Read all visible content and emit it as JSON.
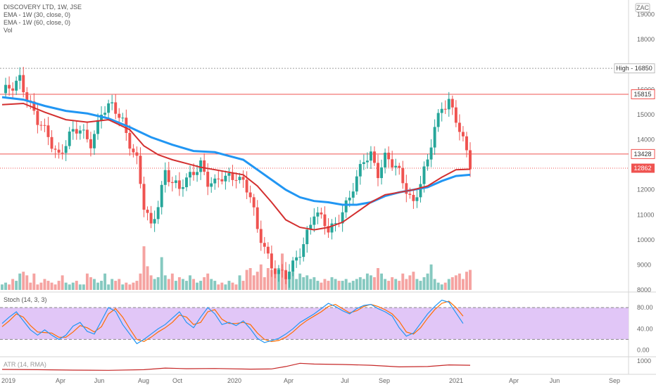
{
  "legend": {
    "title": "DISCOVERY LTD, 1W, JSE",
    "ema30": "EMA - 1W (30, close, 0)",
    "ema60": "EMA - 1W (60, close, 0)",
    "vol": "Vol"
  },
  "currency_badge": "ZAC",
  "price_labels": {
    "high": "High - 16850",
    "level_top": "15815",
    "level_mid": "13428",
    "last": "12862"
  },
  "stoch_label": "Stoch (14, 3, 3)",
  "atr_label": "ATR (14, RMA)",
  "colors": {
    "up": "#26a69a",
    "down": "#ef5350",
    "vol_up": "#86c9c0",
    "vol_down": "#f5a3a1",
    "ema30": "#d32f2f",
    "ema60": "#2196f3",
    "stoch_k": "#2196f3",
    "stoch_d": "#ff6d00",
    "stoch_band": "#e1c6f7",
    "hline": "#ef9a9a",
    "high_line": "#9e9e9e",
    "atr": "#c62828"
  },
  "chart_data": {
    "type": "candlestick",
    "x_ticks": [
      "2019",
      "Apr",
      "Jun",
      "Aug",
      "Oct",
      "2020",
      "Apr",
      "Jul",
      "Sep",
      "2021",
      "Apr",
      "Jun",
      "Sep"
    ],
    "price_axis": {
      "ticks": [
        19000,
        18000,
        16000,
        15000,
        14000,
        12000,
        11000,
        10000,
        9000,
        8000
      ],
      "range": [
        8000,
        19300
      ]
    },
    "levels": {
      "high": 16850,
      "top": 15815,
      "mid": 13428,
      "last": 12862
    },
    "close_path": [
      [
        0,
        15700
      ],
      [
        3,
        16100
      ],
      [
        5,
        16600
      ],
      [
        7,
        15800
      ],
      [
        10,
        14600
      ],
      [
        13,
        14100
      ],
      [
        16,
        13500
      ],
      [
        19,
        14100
      ],
      [
        22,
        14300
      ],
      [
        25,
        14000
      ],
      [
        28,
        15100
      ],
      [
        31,
        15200
      ],
      [
        34,
        14800
      ],
      [
        36,
        14000
      ],
      [
        38,
        13200
      ],
      [
        40,
        11200
      ],
      [
        42,
        10400
      ],
      [
        44,
        11500
      ],
      [
        46,
        12900
      ],
      [
        48,
        12300
      ],
      [
        50,
        11900
      ],
      [
        52,
        12300
      ],
      [
        54,
        12800
      ],
      [
        56,
        13200
      ],
      [
        58,
        12300
      ],
      [
        60,
        12100
      ],
      [
        62,
        12400
      ],
      [
        64,
        12600
      ],
      [
        66,
        12700
      ],
      [
        68,
        12300
      ],
      [
        70,
        11600
      ],
      [
        72,
        10300
      ],
      [
        74,
        9800
      ],
      [
        76,
        9100
      ],
      [
        78,
        8700
      ],
      [
        80,
        8400
      ],
      [
        82,
        8900
      ],
      [
        84,
        9600
      ],
      [
        86,
        10400
      ],
      [
        88,
        11100
      ],
      [
        90,
        10700
      ],
      [
        92,
        10300
      ],
      [
        94,
        10700
      ],
      [
        96,
        11300
      ],
      [
        98,
        11700
      ],
      [
        100,
        12300
      ],
      [
        102,
        13100
      ],
      [
        104,
        13500
      ],
      [
        106,
        12800
      ],
      [
        108,
        13300
      ],
      [
        110,
        12900
      ],
      [
        112,
        12600
      ],
      [
        114,
        12100
      ],
      [
        116,
        11600
      ],
      [
        118,
        12300
      ],
      [
        120,
        13000
      ],
      [
        122,
        14400
      ],
      [
        124,
        15400
      ],
      [
        126,
        15700
      ],
      [
        128,
        14800
      ],
      [
        130,
        13800
      ],
      [
        132,
        12900
      ]
    ],
    "ema30": [
      [
        0,
        15400
      ],
      [
        6,
        15450
      ],
      [
        12,
        15100
      ],
      [
        18,
        14800
      ],
      [
        24,
        14700
      ],
      [
        30,
        14800
      ],
      [
        36,
        14400
      ],
      [
        40,
        13750
      ],
      [
        44,
        13400
      ],
      [
        48,
        13200
      ],
      [
        52,
        13050
      ],
      [
        56,
        12900
      ],
      [
        60,
        12800
      ],
      [
        64,
        12700
      ],
      [
        68,
        12600
      ],
      [
        72,
        12150
      ],
      [
        76,
        11500
      ],
      [
        80,
        10800
      ],
      [
        84,
        10500
      ],
      [
        88,
        10400
      ],
      [
        92,
        10500
      ],
      [
        96,
        10700
      ],
      [
        100,
        11100
      ],
      [
        104,
        11500
      ],
      [
        108,
        11800
      ],
      [
        112,
        11900
      ],
      [
        116,
        12000
      ],
      [
        120,
        12150
      ],
      [
        124,
        12500
      ],
      [
        128,
        12800
      ],
      [
        132,
        12820
      ]
    ],
    "ema60": [
      [
        0,
        15700
      ],
      [
        6,
        15600
      ],
      [
        12,
        15350
      ],
      [
        18,
        15150
      ],
      [
        24,
        15050
      ],
      [
        30,
        14850
      ],
      [
        36,
        14500
      ],
      [
        42,
        14100
      ],
      [
        48,
        13800
      ],
      [
        54,
        13550
      ],
      [
        60,
        13500
      ],
      [
        64,
        13350
      ],
      [
        68,
        13200
      ],
      [
        72,
        12800
      ],
      [
        76,
        12400
      ],
      [
        80,
        12000
      ],
      [
        84,
        11700
      ],
      [
        88,
        11550
      ],
      [
        92,
        11500
      ],
      [
        96,
        11400
      ],
      [
        100,
        11400
      ],
      [
        104,
        11500
      ],
      [
        108,
        11750
      ],
      [
        112,
        11900
      ],
      [
        116,
        12000
      ],
      [
        120,
        12100
      ],
      [
        124,
        12350
      ],
      [
        128,
        12550
      ],
      [
        132,
        12600
      ]
    ],
    "volume": [
      3,
      4,
      3,
      6,
      5,
      9,
      10,
      8,
      4,
      9,
      3,
      4,
      6,
      5,
      4,
      3,
      5,
      8,
      4,
      3,
      4,
      5,
      3,
      3,
      9,
      7,
      6,
      4,
      5,
      9,
      3,
      6,
      5,
      6,
      3,
      4,
      3,
      4,
      5,
      9,
      24,
      13,
      8,
      6,
      7,
      18,
      8,
      6,
      9,
      5,
      7,
      6,
      5,
      8,
      6,
      4,
      5,
      7,
      9,
      6,
      5,
      3,
      4,
      3,
      5,
      4,
      3,
      8,
      5,
      11,
      12,
      8,
      10,
      14,
      7,
      12,
      11,
      9,
      12,
      20,
      11,
      9,
      10,
      6,
      9,
      7,
      8,
      6,
      7,
      5,
      4,
      6,
      5,
      7,
      6,
      5,
      5,
      6,
      4,
      5,
      6,
      7,
      6,
      9,
      8,
      7,
      12,
      9,
      6,
      5,
      7,
      6,
      5,
      9,
      6,
      8,
      10,
      6,
      5,
      7,
      9,
      14,
      6,
      4,
      3,
      4,
      6,
      7,
      8,
      9,
      6,
      10,
      11
    ],
    "stoch": {
      "ticks": [
        80.0,
        40.0,
        0.0
      ],
      "range": [
        -10,
        100
      ],
      "k": [
        [
          0,
          50
        ],
        [
          2,
          62
        ],
        [
          4,
          72
        ],
        [
          6,
          55
        ],
        [
          8,
          38
        ],
        [
          10,
          28
        ],
        [
          12,
          38
        ],
        [
          14,
          28
        ],
        [
          16,
          20
        ],
        [
          18,
          28
        ],
        [
          20,
          45
        ],
        [
          22,
          52
        ],
        [
          24,
          35
        ],
        [
          26,
          30
        ],
        [
          28,
          55
        ],
        [
          30,
          80
        ],
        [
          32,
          73
        ],
        [
          34,
          48
        ],
        [
          36,
          30
        ],
        [
          38,
          12
        ],
        [
          40,
          20
        ],
        [
          42,
          30
        ],
        [
          44,
          40
        ],
        [
          46,
          48
        ],
        [
          48,
          60
        ],
        [
          50,
          72
        ],
        [
          52,
          52
        ],
        [
          54,
          42
        ],
        [
          56,
          62
        ],
        [
          58,
          80
        ],
        [
          60,
          68
        ],
        [
          62,
          48
        ],
        [
          64,
          52
        ],
        [
          66,
          46
        ],
        [
          68,
          55
        ],
        [
          70,
          40
        ],
        [
          72,
          22
        ],
        [
          74,
          14
        ],
        [
          76,
          18
        ],
        [
          78,
          22
        ],
        [
          80,
          30
        ],
        [
          82,
          40
        ],
        [
          84,
          52
        ],
        [
          86,
          60
        ],
        [
          88,
          68
        ],
        [
          90,
          78
        ],
        [
          92,
          88
        ],
        [
          94,
          82
        ],
        [
          96,
          74
        ],
        [
          98,
          68
        ],
        [
          100,
          78
        ],
        [
          102,
          84
        ],
        [
          104,
          86
        ],
        [
          106,
          78
        ],
        [
          108,
          72
        ],
        [
          110,
          64
        ],
        [
          112,
          42
        ],
        [
          114,
          26
        ],
        [
          116,
          32
        ],
        [
          118,
          50
        ],
        [
          120,
          68
        ],
        [
          122,
          82
        ],
        [
          124,
          94
        ],
        [
          126,
          90
        ],
        [
          128,
          70
        ],
        [
          130,
          50
        ]
      ],
      "d": [
        [
          0,
          44
        ],
        [
          2,
          55
        ],
        [
          4,
          68
        ],
        [
          6,
          62
        ],
        [
          8,
          46
        ],
        [
          10,
          34
        ],
        [
          12,
          33
        ],
        [
          14,
          32
        ],
        [
          16,
          24
        ],
        [
          18,
          24
        ],
        [
          20,
          34
        ],
        [
          22,
          46
        ],
        [
          24,
          42
        ],
        [
          26,
          34
        ],
        [
          28,
          44
        ],
        [
          30,
          68
        ],
        [
          32,
          78
        ],
        [
          34,
          62
        ],
        [
          36,
          40
        ],
        [
          38,
          20
        ],
        [
          40,
          16
        ],
        [
          42,
          24
        ],
        [
          44,
          34
        ],
        [
          46,
          42
        ],
        [
          48,
          52
        ],
        [
          50,
          66
        ],
        [
          52,
          62
        ],
        [
          54,
          48
        ],
        [
          56,
          52
        ],
        [
          58,
          72
        ],
        [
          60,
          76
        ],
        [
          62,
          58
        ],
        [
          64,
          50
        ],
        [
          66,
          50
        ],
        [
          68,
          52
        ],
        [
          70,
          48
        ],
        [
          72,
          32
        ],
        [
          74,
          20
        ],
        [
          76,
          16
        ],
        [
          78,
          18
        ],
        [
          80,
          24
        ],
        [
          82,
          34
        ],
        [
          84,
          46
        ],
        [
          86,
          56
        ],
        [
          88,
          64
        ],
        [
          90,
          72
        ],
        [
          92,
          82
        ],
        [
          94,
          86
        ],
        [
          96,
          78
        ],
        [
          98,
          70
        ],
        [
          100,
          74
        ],
        [
          102,
          82
        ],
        [
          104,
          86
        ],
        [
          106,
          82
        ],
        [
          108,
          76
        ],
        [
          110,
          68
        ],
        [
          112,
          54
        ],
        [
          114,
          34
        ],
        [
          116,
          30
        ],
        [
          118,
          42
        ],
        [
          120,
          60
        ],
        [
          122,
          76
        ],
        [
          124,
          88
        ],
        [
          126,
          92
        ],
        [
          128,
          80
        ],
        [
          130,
          64
        ]
      ]
    },
    "atr": {
      "ticks": [
        1000
      ],
      "values": [
        [
          0,
          575
        ],
        [
          10,
          560
        ],
        [
          20,
          540
        ],
        [
          30,
          530
        ],
        [
          40,
          560
        ],
        [
          46,
          640
        ],
        [
          52,
          610
        ],
        [
          60,
          620
        ],
        [
          70,
          590
        ],
        [
          76,
          600
        ],
        [
          80,
          720
        ],
        [
          84,
          880
        ],
        [
          88,
          840
        ],
        [
          96,
          820
        ],
        [
          104,
          780
        ],
        [
          112,
          700
        ],
        [
          120,
          720
        ],
        [
          126,
          800
        ],
        [
          132,
          780
        ]
      ]
    }
  }
}
